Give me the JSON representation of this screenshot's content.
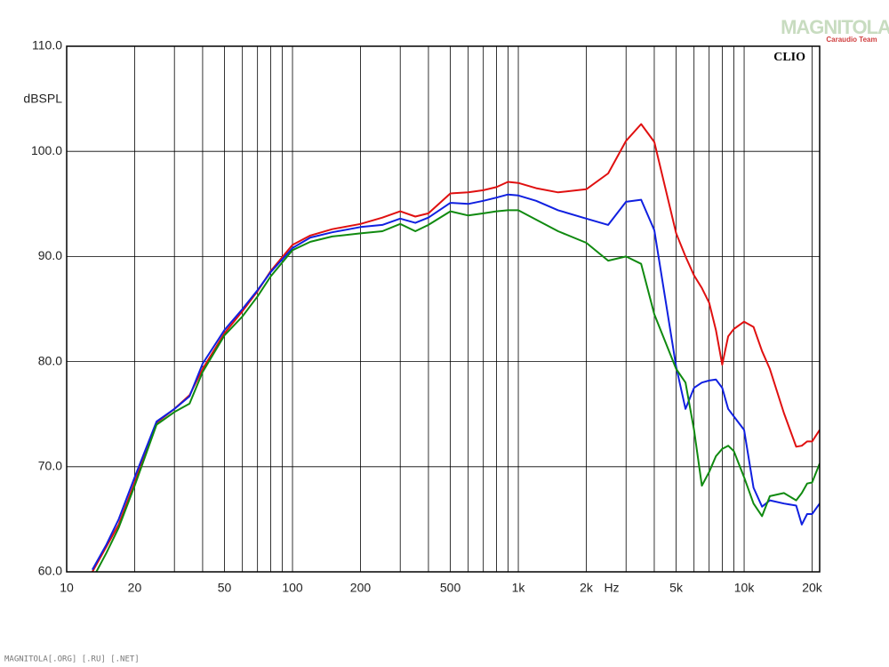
{
  "chart_data": {
    "type": "line",
    "watermark": "MAGNITOLA",
    "watermark_sub": "Caraudio Team",
    "footer": "MAGNITOLA[.ORG] [.RU] [.NET]",
    "brand": "CLIO",
    "ylabel": "dBSPL",
    "xunit": "Hz",
    "xscale": "log",
    "grid": true,
    "xlim": [
      10,
      21600
    ],
    "ylim": [
      60,
      110
    ],
    "xticks": [
      10,
      20,
      50,
      100,
      200,
      500,
      {
        "value": 1000,
        "label": "1k"
      },
      {
        "value": 2000,
        "label": "2k"
      },
      {
        "value": 5000,
        "label": "5k"
      },
      {
        "value": 10000,
        "label": "10k"
      },
      {
        "value": 20000,
        "label": "20k"
      }
    ],
    "xgrid": [
      30,
      40,
      60,
      70,
      80,
      90,
      300,
      400,
      600,
      700,
      800,
      900,
      3000,
      4000,
      6000,
      7000,
      8000,
      9000
    ],
    "yticks": [
      {
        "value": 60,
        "label": "60.0"
      },
      {
        "value": 70,
        "label": "70.0"
      },
      {
        "value": 80,
        "label": "80.0"
      },
      {
        "value": 90,
        "label": "90.0"
      },
      {
        "value": 100,
        "label": "100.0"
      },
      {
        "value": 110,
        "label": "110.0"
      }
    ],
    "x": [
      13,
      15,
      17,
      20,
      25,
      30,
      35,
      40,
      50,
      60,
      70,
      80,
      100,
      120,
      150,
      200,
      250,
      300,
      350,
      400,
      500,
      600,
      700,
      800,
      900,
      1000,
      1200,
      1500,
      2000,
      2500,
      3000,
      3500,
      4000,
      5000,
      5500,
      6000,
      6500,
      7000,
      7500,
      8000,
      8500,
      9000,
      10000,
      11000,
      12000,
      13000,
      15000,
      17000,
      18000,
      19000,
      20000,
      21600
    ],
    "series": [
      {
        "color": "#e01010",
        "values": [
          60,
          62.4,
          64.5,
          68.5,
          74.2,
          75.5,
          76.8,
          79.3,
          82.7,
          84.8,
          86.7,
          88.6,
          91.1,
          92.0,
          92.6,
          93.1,
          93.7,
          94.3,
          93.8,
          94.1,
          96,
          96.1,
          96.3,
          96.6,
          97.1,
          97,
          96.5,
          96.1,
          96.4,
          97.9,
          101,
          102.6,
          100.9,
          92.2,
          90,
          88.2,
          87,
          85.6,
          83,
          79.7,
          82.4,
          83.1,
          83.8,
          83.3,
          81,
          79.3,
          75.1,
          71.9,
          72,
          72.4,
          72.4,
          73.5
        ]
      },
      {
        "color": "#1020e0",
        "values": [
          60.2,
          62.6,
          65,
          69,
          74.3,
          75.5,
          76.7,
          79.8,
          83,
          85,
          86.8,
          88.5,
          90.8,
          91.8,
          92.3,
          92.8,
          93.0,
          93.6,
          93.2,
          93.7,
          95.1,
          95.0,
          95.3,
          95.6,
          95.9,
          95.8,
          95.3,
          94.4,
          93.6,
          93.0,
          95.2,
          95.4,
          92.5,
          79.5,
          75.5,
          77.5,
          78,
          78.2,
          78.3,
          77.5,
          75.5,
          74.8,
          73.5,
          68,
          66.2,
          66.8,
          66.5,
          66.3,
          64.5,
          65.5,
          65.5,
          66.5
        ]
      },
      {
        "color": "#108a10",
        "values": [
          59.3,
          61.8,
          64.2,
          68.2,
          74,
          75.2,
          76,
          79,
          82.5,
          84.3,
          86.2,
          88.1,
          90.6,
          91.4,
          91.9,
          92.2,
          92.4,
          93.1,
          92.4,
          93,
          94.3,
          93.9,
          94.1,
          94.3,
          94.4,
          94.4,
          93.5,
          92.4,
          91.3,
          89.6,
          90,
          89.3,
          84.5,
          79.3,
          78,
          73.5,
          68.2,
          69.5,
          71,
          71.7,
          72,
          71.5,
          69,
          66.5,
          65.3,
          67.2,
          67.5,
          66.8,
          67.5,
          68.4,
          68.5,
          70.3
        ]
      }
    ]
  }
}
